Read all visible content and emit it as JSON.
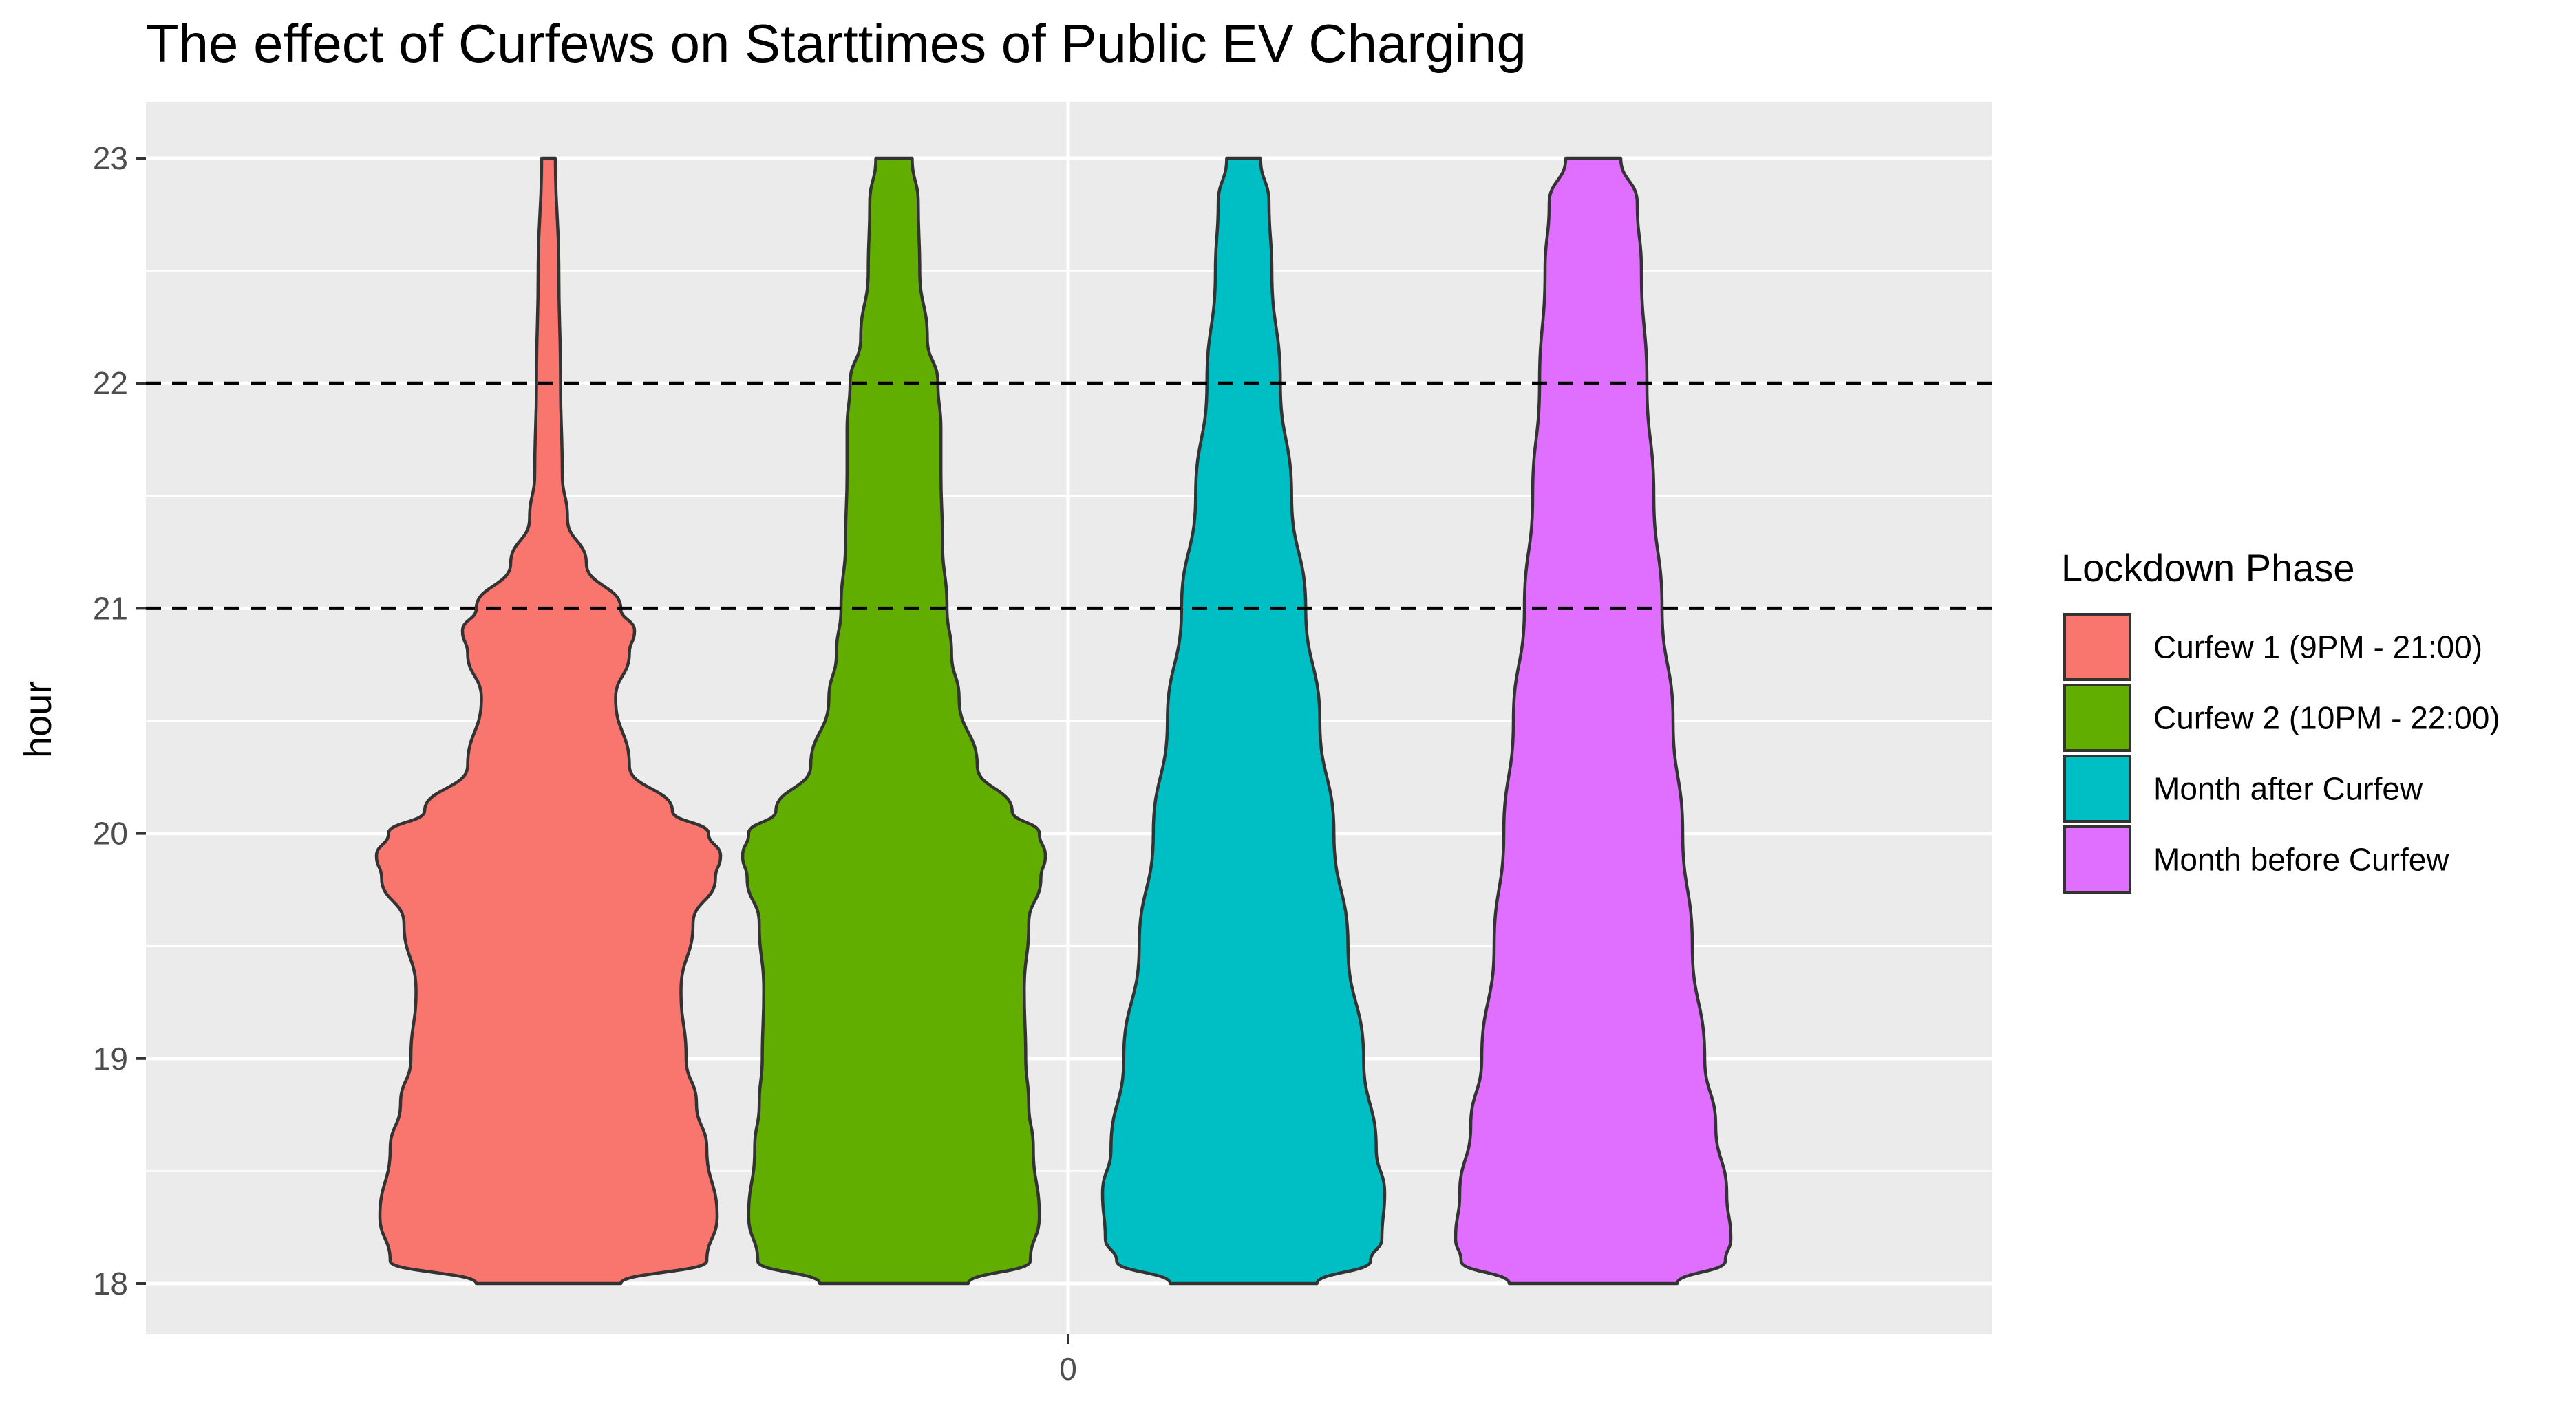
{
  "chart_data": {
    "type": "violin",
    "title": "The effect of Curfews on Starttimes of Public EV Charging",
    "xlabel": "",
    "ylabel": "hour",
    "x_ticks": [
      "0"
    ],
    "y_ticks": [
      18,
      19,
      20,
      21,
      22,
      23
    ],
    "ylim": [
      17.75,
      23.25
    ],
    "grid": true,
    "reference_lines": [
      {
        "y": 21,
        "style": "dashed",
        "color": "#000000"
      },
      {
        "y": 22,
        "style": "dashed",
        "color": "#000000"
      }
    ],
    "legend": {
      "title": "Lockdown Phase",
      "position": "right"
    },
    "series": [
      {
        "name": "Curfew 1 (9PM - 21:00)",
        "color": "#F8766D",
        "relative_density_profile": [
          [
            18.0,
            0.42
          ],
          [
            18.1,
            0.92
          ],
          [
            18.3,
            0.98
          ],
          [
            18.6,
            0.92
          ],
          [
            18.8,
            0.86
          ],
          [
            19.0,
            0.8
          ],
          [
            19.3,
            0.77
          ],
          [
            19.6,
            0.84
          ],
          [
            19.8,
            0.97
          ],
          [
            19.9,
            1.0
          ],
          [
            20.0,
            0.93
          ],
          [
            20.1,
            0.72
          ],
          [
            20.3,
            0.47
          ],
          [
            20.6,
            0.39
          ],
          [
            20.8,
            0.47
          ],
          [
            20.9,
            0.5
          ],
          [
            21.0,
            0.42
          ],
          [
            21.2,
            0.22
          ],
          [
            21.4,
            0.11
          ],
          [
            21.6,
            0.08
          ],
          [
            22.0,
            0.07
          ],
          [
            22.5,
            0.06
          ],
          [
            23.0,
            0.04
          ]
        ]
      },
      {
        "name": "Curfew 2 (10PM - 22:00)",
        "color": "#61AE00",
        "relative_density_profile": [
          [
            18.0,
            0.49
          ],
          [
            18.1,
            0.9
          ],
          [
            18.3,
            0.96
          ],
          [
            18.6,
            0.92
          ],
          [
            18.8,
            0.89
          ],
          [
            19.0,
            0.87
          ],
          [
            19.3,
            0.86
          ],
          [
            19.6,
            0.89
          ],
          [
            19.8,
            0.97
          ],
          [
            19.9,
            1.0
          ],
          [
            20.0,
            0.96
          ],
          [
            20.1,
            0.78
          ],
          [
            20.3,
            0.55
          ],
          [
            20.6,
            0.43
          ],
          [
            20.8,
            0.38
          ],
          [
            21.0,
            0.35
          ],
          [
            21.3,
            0.32
          ],
          [
            21.6,
            0.31
          ],
          [
            21.8,
            0.31
          ],
          [
            22.0,
            0.29
          ],
          [
            22.2,
            0.22
          ],
          [
            22.5,
            0.17
          ],
          [
            22.8,
            0.16
          ],
          [
            23.0,
            0.12
          ]
        ]
      },
      {
        "name": "Month after Curfew",
        "color": "#00BFC4",
        "relative_density_profile": [
          [
            18.0,
            0.52
          ],
          [
            18.1,
            0.9
          ],
          [
            18.2,
            0.98
          ],
          [
            18.4,
            1.0
          ],
          [
            18.6,
            0.94
          ],
          [
            19.0,
            0.85
          ],
          [
            19.5,
            0.74
          ],
          [
            20.0,
            0.64
          ],
          [
            20.5,
            0.54
          ],
          [
            21.0,
            0.44
          ],
          [
            21.5,
            0.34
          ],
          [
            22.0,
            0.26
          ],
          [
            22.5,
            0.2
          ],
          [
            22.8,
            0.18
          ],
          [
            23.0,
            0.12
          ]
        ]
      },
      {
        "name": "Month before Curfew",
        "color": "#E06FFF",
        "relative_density_profile": [
          [
            18.0,
            0.61
          ],
          [
            18.1,
            0.96
          ],
          [
            18.2,
            1.0
          ],
          [
            18.4,
            0.97
          ],
          [
            18.7,
            0.89
          ],
          [
            19.0,
            0.81
          ],
          [
            19.5,
            0.72
          ],
          [
            20.0,
            0.65
          ],
          [
            20.5,
            0.58
          ],
          [
            21.0,
            0.5
          ],
          [
            21.5,
            0.44
          ],
          [
            22.0,
            0.39
          ],
          [
            22.5,
            0.35
          ],
          [
            22.8,
            0.32
          ],
          [
            23.0,
            0.2
          ]
        ]
      }
    ]
  }
}
